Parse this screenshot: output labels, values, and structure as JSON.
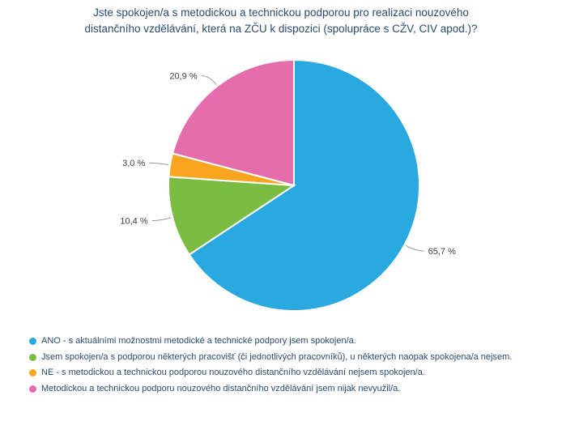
{
  "chart_data": {
    "type": "pie",
    "title_lines": [
      "Jste spokojen/a s metodickou a technickou podporou pro realizaci nouzového",
      "distančního vzdělávání, která na ZČU k dispozici (spolupráce s CŽV, CIV apod.)?"
    ],
    "unit": "%",
    "direction": "clockwise",
    "start_angle_deg": 0,
    "legend_position": "bottom-left",
    "slices": [
      {
        "label": "ANO - s aktuálními možnostmi metodické a technické podpory jsem spokojen/a.",
        "value": 65.7,
        "value_label": "65,7 %",
        "color": "#29A9E0"
      },
      {
        "label": "Jsem spokojen/a s podporou některých pracovišť (či jednotlivých pracovníků), u některých naopak spokojena/a nejsem.",
        "value": 10.4,
        "value_label": "10,4 %",
        "color": "#7BBD42"
      },
      {
        "label": "NE - s metodickou a technickou podporou nouzového distančního vzdělávání nejsem spokojen/a.",
        "value": 3.0,
        "value_label": "3,0 %",
        "color": "#F9A51F"
      },
      {
        "label": "Metodickou a technickou podporu nouzového distančního vzdělávání jsem nijak nevyužil/a.",
        "value": 20.9,
        "value_label": "20,9 %",
        "color": "#E56DAB"
      }
    ],
    "style_colors": {
      "title_text": "#2A4A6B",
      "legend_text": "#2A4A6B",
      "value_label_text": "#3D3D3D",
      "leader_line": "#999999",
      "slice_separator": "#FFFFFF"
    }
  }
}
